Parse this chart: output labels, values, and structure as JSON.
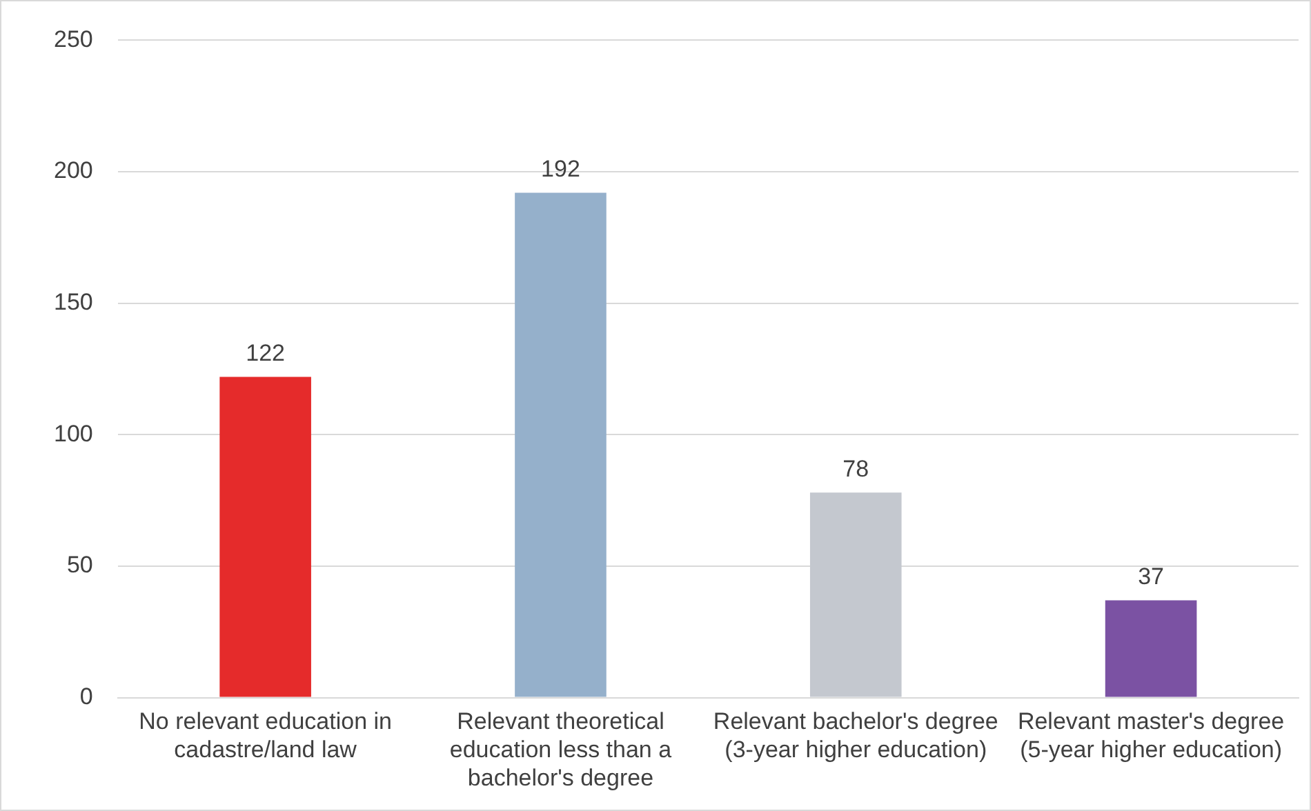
{
  "chart_data": {
    "type": "bar",
    "categories": [
      "No relevant education in cadastre/land law",
      "Relevant theoretical education less than a bachelor's degree",
      "Relevant bachelor's degree (3-year higher education)",
      "Relevant master's degree (5-year higher education)"
    ],
    "values": [
      122,
      192,
      78,
      37
    ],
    "colors": [
      "#e52b2b",
      "#95b0cb",
      "#c4c8cf",
      "#7b52a3"
    ],
    "ylim": [
      0,
      250
    ],
    "yticks": [
      0,
      50,
      100,
      150,
      200,
      250
    ],
    "grid": "y",
    "legend": false,
    "data_labels": true
  }
}
